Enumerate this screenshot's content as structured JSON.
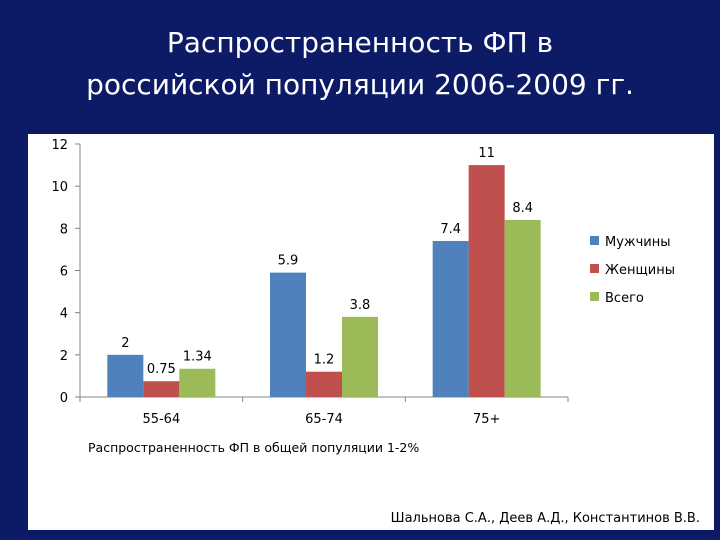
{
  "title": {
    "line1": "Распространенность ФП в",
    "line2": "российской популяции 2006-2009 гг."
  },
  "note": "Распространенность  ФП в общей популяции 1-2%",
  "authors": "Шальнова С.А., Деев А.Д., Константинов В.В.",
  "colors": {
    "background": "#0d1a66"
  },
  "chart_data": {
    "type": "bar",
    "categories": [
      "55-64",
      "65-74",
      "75+"
    ],
    "series": [
      {
        "name": "Мужчины",
        "values": [
          2,
          5.9,
          7.4
        ],
        "labels": [
          "2",
          "5.9",
          "7.4"
        ],
        "color": "#4f81bd"
      },
      {
        "name": "Женщины",
        "values": [
          0.75,
          1.2,
          11
        ],
        "labels": [
          "0.75",
          "1.2",
          "11"
        ],
        "color": "#c0504d"
      },
      {
        "name": "Всего",
        "values": [
          1.34,
          3.8,
          8.4
        ],
        "labels": [
          "1.34",
          "3.8",
          "8.4"
        ],
        "color": "#9bbb59"
      }
    ],
    "yticks": [
      "0",
      "2",
      "4",
      "6",
      "8",
      "10",
      "12"
    ],
    "ylim": [
      0,
      12
    ],
    "grid": false,
    "legend": "right"
  }
}
